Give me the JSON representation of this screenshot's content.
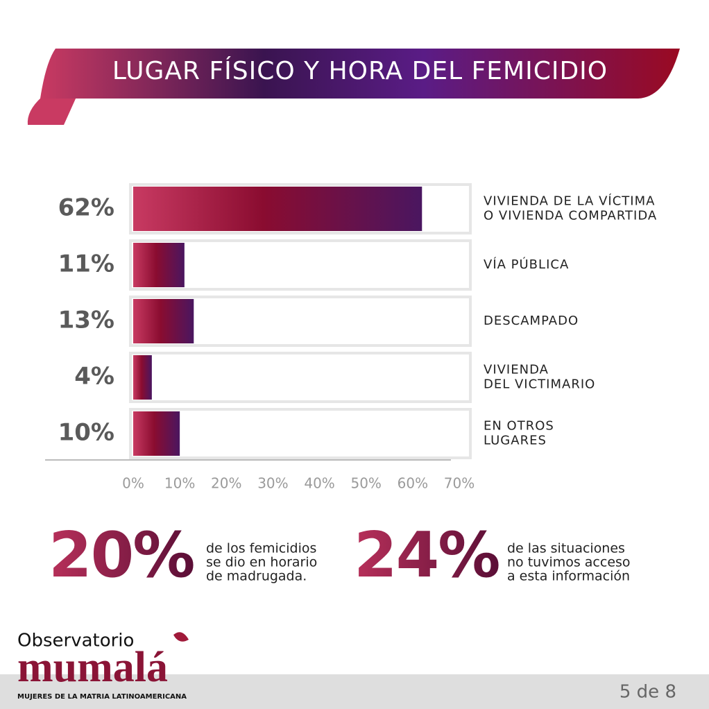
{
  "header": {
    "title": "LUGAR FÍSICO Y HORA DEL FEMICIDIO"
  },
  "chart_data": {
    "type": "hbar",
    "categories": [
      [
        "VIVIENDA DE LA VÍCTIMA",
        "O VIVIENDA COMPARTIDA"
      ],
      [
        "VÍA PÚBLICA"
      ],
      [
        "DESCAMPADO"
      ],
      [
        "VIVIENDA",
        "DEL VICTIMARIO"
      ],
      [
        "EN OTROS",
        "LUGARES"
      ]
    ],
    "values": [
      62,
      11,
      13,
      4,
      10
    ],
    "value_labels": [
      "62%",
      "11%",
      "13%",
      "4%",
      "10%"
    ],
    "xlim": [
      0,
      70
    ],
    "xticks": [
      {
        "value": 0,
        "label": "0%"
      },
      {
        "value": 10,
        "label": "10%"
      },
      {
        "value": 20,
        "label": "20%"
      },
      {
        "value": 30,
        "label": "30%"
      },
      {
        "value": 40,
        "label": "40%"
      },
      {
        "value": 50,
        "label": "50%"
      },
      {
        "value": 60,
        "label": "60%"
      },
      {
        "value": 70,
        "label": "70%"
      }
    ],
    "grid": false
  },
  "highlights": [
    {
      "figure": "20%",
      "lines": [
        "de los femicidios",
        "se dio en horario",
        "de madrugada."
      ]
    },
    {
      "figure": "24%",
      "lines": [
        "de las situaciones",
        "no tuvimos acceso",
        "a esta información"
      ]
    }
  ],
  "footer": {
    "logo_top": "Observatorio",
    "logo_name": "mumalá",
    "logo_tagline": "MUJERES DE LA MATRIA LATINOAMERICANA",
    "page": "5 de 8"
  }
}
